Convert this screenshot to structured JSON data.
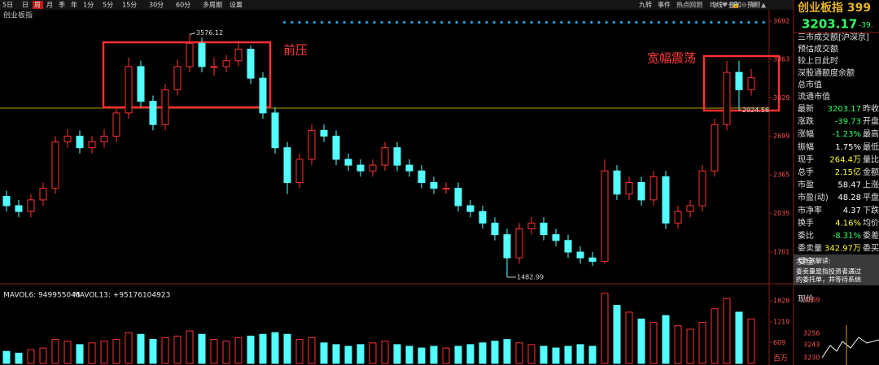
{
  "toolbar": {
    "periods": [
      "5日",
      "日",
      "周",
      "月",
      "季",
      "年",
      "1分",
      "5分",
      "15分",
      "30分",
      "60分",
      "多周期",
      "设置"
    ],
    "selected_index": 2,
    "tools": [
      "九转",
      "事件",
      "热点回测",
      "均线",
      "叠加",
      "预测"
    ]
  },
  "chart_data": {
    "type": "candlestick",
    "title": "创业板指",
    "ohlc": [
      [
        2180,
        2230,
        2050,
        2100
      ],
      [
        2100,
        2150,
        2000,
        2050
      ],
      [
        2050,
        2200,
        2000,
        2150
      ],
      [
        2150,
        2300,
        2100,
        2250
      ],
      [
        2250,
        2700,
        2200,
        2650
      ],
      [
        2650,
        2760,
        2600,
        2700
      ],
      [
        2700,
        2750,
        2550,
        2600
      ],
      [
        2600,
        2700,
        2550,
        2650
      ],
      [
        2650,
        2760,
        2600,
        2700
      ],
      [
        2700,
        2950,
        2650,
        2900
      ],
      [
        2900,
        3380,
        2850,
        3300
      ],
      [
        3300,
        3350,
        2950,
        3000
      ],
      [
        3000,
        3050,
        2750,
        2800
      ],
      [
        2800,
        3150,
        2750,
        3100
      ],
      [
        3100,
        3360,
        3050,
        3300
      ],
      [
        3300,
        3576.12,
        3250,
        3500
      ],
      [
        3500,
        3550,
        3250,
        3300
      ],
      [
        3300,
        3380,
        3220,
        3300
      ],
      [
        3300,
        3400,
        3250,
        3350
      ],
      [
        3350,
        3520,
        3300,
        3450
      ],
      [
        3450,
        3480,
        3150,
        3200
      ],
      [
        3200,
        3250,
        2850,
        2900
      ],
      [
        2900,
        2950,
        2550,
        2600
      ],
      [
        2600,
        2650,
        2200,
        2300
      ],
      [
        2300,
        2550,
        2250,
        2500
      ],
      [
        2500,
        2800,
        2450,
        2750
      ],
      [
        2750,
        2800,
        2650,
        2700
      ],
      [
        2700,
        2750,
        2450,
        2500
      ],
      [
        2500,
        2550,
        2400,
        2450
      ],
      [
        2450,
        2500,
        2350,
        2400
      ],
      [
        2400,
        2500,
        2350,
        2450
      ],
      [
        2450,
        2650,
        2400,
        2600
      ],
      [
        2600,
        2650,
        2400,
        2450
      ],
      [
        2450,
        2500,
        2350,
        2400
      ],
      [
        2400,
        2450,
        2250,
        2300
      ],
      [
        2300,
        2350,
        2200,
        2250
      ],
      [
        2250,
        2300,
        2200,
        2250
      ],
      [
        2250,
        2300,
        2050,
        2100
      ],
      [
        2100,
        2150,
        2000,
        2050
      ],
      [
        2050,
        2100,
        1900,
        1950
      ],
      [
        1950,
        2000,
        1800,
        1850
      ],
      [
        1850,
        1900,
        1482.99,
        1650
      ],
      [
        1650,
        1950,
        1600,
        1900
      ],
      [
        1900,
        2000,
        1850,
        1950
      ],
      [
        1950,
        2000,
        1800,
        1850
      ],
      [
        1850,
        1900,
        1750,
        1800
      ],
      [
        1800,
        1850,
        1650,
        1700
      ],
      [
        1700,
        1750,
        1600,
        1650
      ],
      [
        1650,
        1700,
        1580,
        1620
      ],
      [
        1620,
        2500,
        1600,
        2400
      ],
      [
        2400,
        2450,
        2150,
        2200
      ],
      [
        2200,
        2350,
        2150,
        2300
      ],
      [
        2300,
        2350,
        2100,
        2150
      ],
      [
        2150,
        2400,
        2100,
        2350
      ],
      [
        2350,
        2400,
        1900,
        1950
      ],
      [
        1950,
        2100,
        1900,
        2050
      ],
      [
        2050,
        2150,
        2000,
        2100
      ],
      [
        2100,
        2450,
        2050,
        2400
      ],
      [
        2400,
        2850,
        2350,
        2800
      ],
      [
        2800,
        3350,
        2750,
        3250
      ],
      [
        3250,
        3350,
        2924.56,
        3100
      ],
      [
        3100,
        3280,
        3050,
        3203.17
      ]
    ],
    "ylim": [
      1455,
      3790
    ],
    "yticks": [
      1701,
      2035,
      2365,
      2699,
      3029,
      3363,
      3692
    ],
    "up_color": "#ff3232",
    "down_color": "#54ffff",
    "annotations": [
      "前压",
      "宽幅震荡"
    ],
    "volume": {
      "values": [
        350,
        300,
        400,
        450,
        700,
        650,
        550,
        600,
        650,
        700,
        900,
        850,
        700,
        750,
        800,
        950,
        850,
        700,
        650,
        750,
        800,
        850,
        900,
        850,
        700,
        750,
        600,
        550,
        500,
        550,
        600,
        650,
        550,
        500,
        450,
        500,
        450,
        500,
        550,
        600,
        650,
        700,
        600,
        550,
        500,
        450,
        500,
        550,
        500,
        2050,
        1700,
        1500,
        1300,
        1200,
        1400,
        1100,
        1000,
        1200,
        1600,
        1900,
        1500,
        1300
      ],
      "ylim": [
        0,
        2190
      ],
      "yticks": [
        609,
        1219,
        1828
      ],
      "unit": "百万",
      "legend": [
        "MAVOL6: 949955048",
        "MAVOL13: +95176104923"
      ]
    }
  },
  "quote": {
    "name": "创业板指 399",
    "change": "-39.",
    "info": [
      "三市成交额[沪深京]",
      "预估成交额",
      "较上日此时",
      "深股通额度余额",
      "总市值",
      "流通市值"
    ],
    "rows": [
      {
        "label": "最新",
        "value": "3203.17",
        "label2": "昨收",
        "color": "#33ff66"
      },
      {
        "label": "涨跌",
        "value": "-39.73",
        "label2": "开盘",
        "color": "#33ff66"
      },
      {
        "label": "涨幅",
        "value": "-1.23%",
        "label2": "最高",
        "color": "#33ff66"
      },
      {
        "label": "振幅",
        "value": "1.75%",
        "label2": "最低",
        "color": "#ffffff"
      },
      {
        "label": "现手",
        "value": "264.4万",
        "label2": "量比",
        "color": "#ffff33"
      },
      {
        "label": "总手",
        "value": "2.15亿",
        "label2": "金额",
        "color": "#ffff33"
      },
      {
        "label": "市盈",
        "value": "58.47",
        "label2": "上涨",
        "color": "#ffffff"
      },
      {
        "label": "市盈(动)",
        "value": "48.28",
        "label2": "平盘",
        "color": "#ffffff"
      },
      {
        "label": "市净率",
        "value": "4.37",
        "label2": "下跌",
        "color": "#ffffff"
      },
      {
        "label": "换手",
        "value": "4.16%",
        "label2": "均价",
        "color": "#ffff33"
      },
      {
        "label": "委比",
        "value": "-8.31%",
        "label2": "委差",
        "color": "#33ff66"
      },
      {
        "label": "委卖量",
        "value": "342.97万",
        "label2": "委买",
        "color": "#ffff33"
      }
    ],
    "extra": [
      "委全",
      "现价"
    ],
    "popup": {
      "title": "大数据解读:",
      "lines": [
        "委卖量是指投资者通过",
        "的委托单，并等待系统"
      ]
    },
    "mini_yticks": [
      3269,
      3256,
      3243,
      3230
    ]
  }
}
